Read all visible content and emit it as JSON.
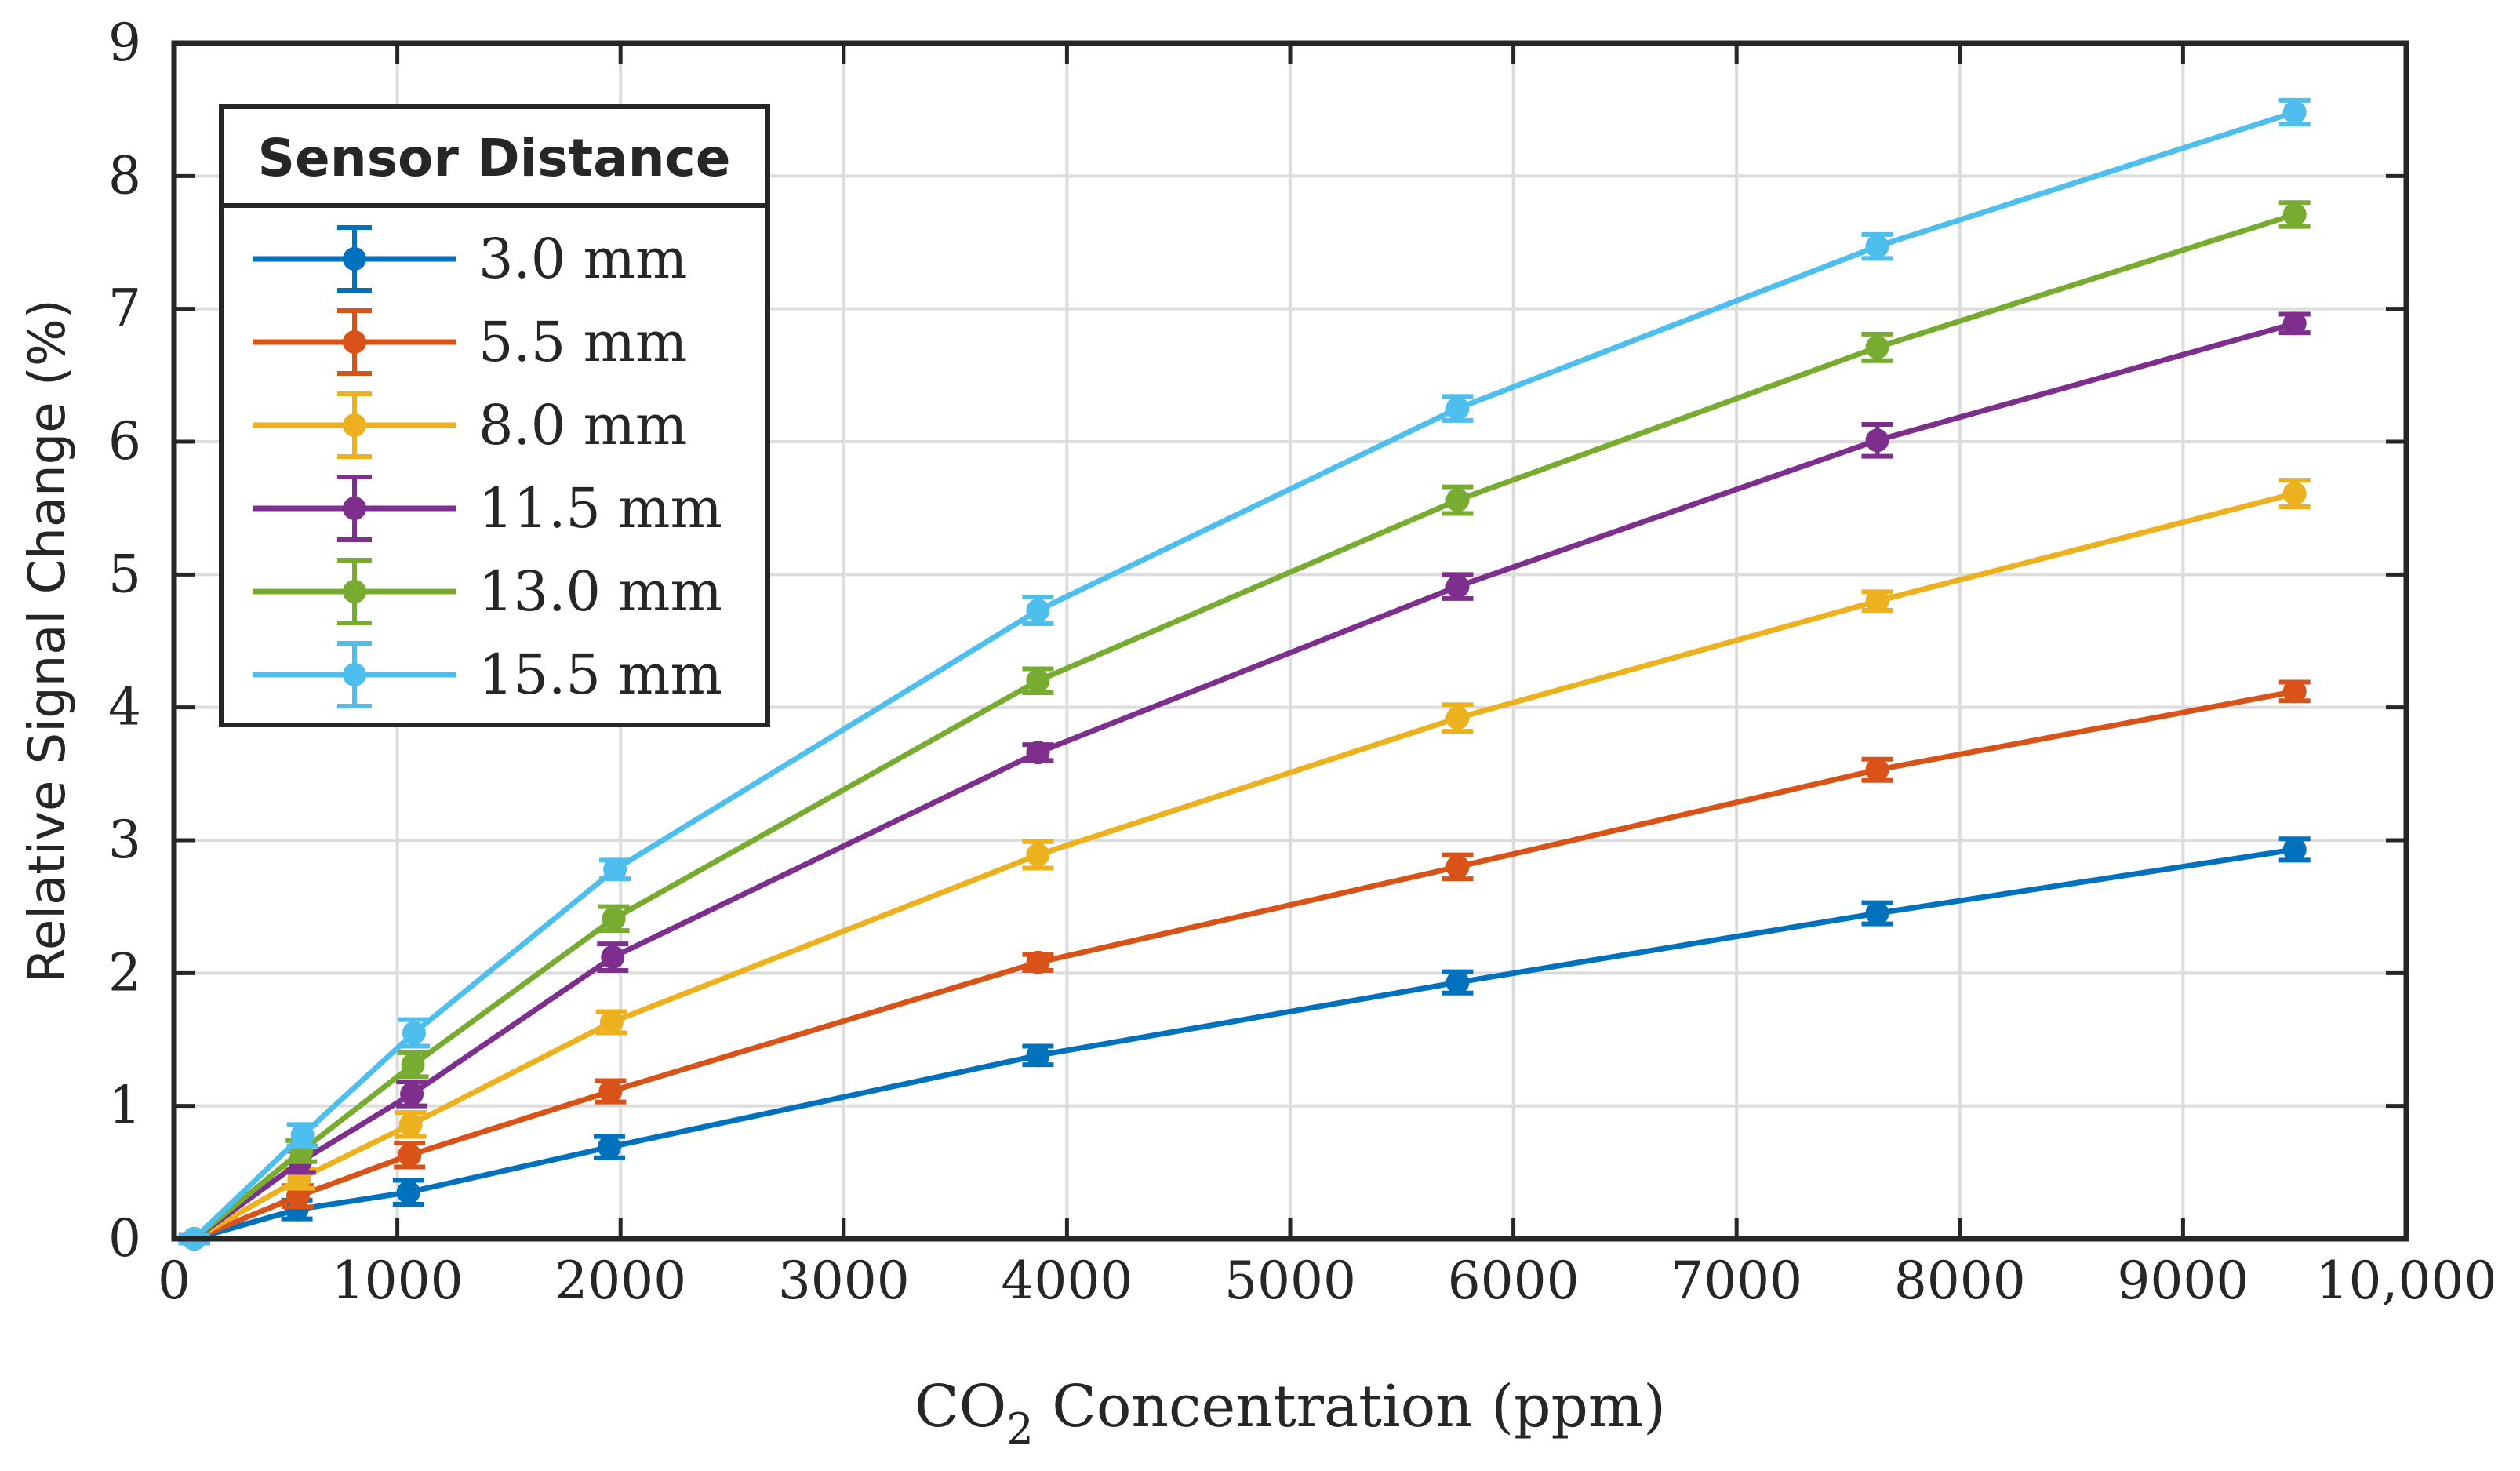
{
  "chart_data": {
    "type": "line",
    "xlabel_prefix": "CO",
    "xlabel_subscript": "2",
    "xlabel_suffix": " Concentration (ppm)",
    "ylabel": "Relative Signal Change (%)",
    "xlim": [
      0,
      10000
    ],
    "ylim": [
      0,
      9
    ],
    "xticks": [
      {
        "value": 0,
        "label": "0"
      },
      {
        "value": 1000,
        "label": "1000"
      },
      {
        "value": 2000,
        "label": "2000"
      },
      {
        "value": 3000,
        "label": "3000"
      },
      {
        "value": 4000,
        "label": "4000"
      },
      {
        "value": 5000,
        "label": "5000"
      },
      {
        "value": 6000,
        "label": "6000"
      },
      {
        "value": 7000,
        "label": "7000"
      },
      {
        "value": 8000,
        "label": "8000"
      },
      {
        "value": 9000,
        "label": "9000"
      },
      {
        "value": 10000,
        "label": "10,000"
      }
    ],
    "yticks": [
      {
        "value": 0,
        "label": "0"
      },
      {
        "value": 1,
        "label": "1"
      },
      {
        "value": 2,
        "label": "2"
      },
      {
        "value": 3,
        "label": "3"
      },
      {
        "value": 4,
        "label": "4"
      },
      {
        "value": 5,
        "label": "5"
      },
      {
        "value": 6,
        "label": "6"
      },
      {
        "value": 7,
        "label": "7"
      },
      {
        "value": 8,
        "label": "8"
      },
      {
        "value": 9,
        "label": "9"
      }
    ],
    "grid": true,
    "legend": {
      "title": "Sensor Distance",
      "position": "top-left"
    },
    "series": [
      {
        "name": "3.0 mm",
        "color": "#0072BD",
        "x": [
          90,
          550,
          1050,
          1950,
          3870,
          5750,
          7630,
          9500
        ],
        "y": [
          0,
          0.22,
          0.35,
          0.69,
          1.38,
          1.93,
          2.45,
          2.93
        ],
        "err": [
          0.03,
          0.07,
          0.09,
          0.08,
          0.07,
          0.08,
          0.08,
          0.08
        ]
      },
      {
        "name": "5.5 mm",
        "color": "#D95319",
        "x": [
          90,
          555,
          1055,
          1955,
          3870,
          5750,
          7630,
          9500
        ],
        "y": [
          0,
          0.32,
          0.63,
          1.11,
          2.08,
          2.8,
          3.53,
          4.12
        ],
        "err": [
          0.03,
          0.08,
          0.09,
          0.08,
          0.06,
          0.09,
          0.08,
          0.07
        ]
      },
      {
        "name": "8.0 mm",
        "color": "#EDB120",
        "x": [
          90,
          560,
          1060,
          1960,
          3870,
          5750,
          7630,
          9500
        ],
        "y": [
          0,
          0.45,
          0.86,
          1.63,
          2.89,
          3.92,
          4.8,
          5.61
        ],
        "err": [
          0.03,
          0.07,
          0.09,
          0.08,
          0.1,
          0.1,
          0.07,
          0.1
        ]
      },
      {
        "name": "11.5 mm",
        "color": "#7E2F8E",
        "x": [
          90,
          565,
          1065,
          1965,
          3870,
          5750,
          7630,
          9500
        ],
        "y": [
          0,
          0.58,
          1.09,
          2.12,
          3.66,
          4.91,
          6.01,
          6.89
        ],
        "err": [
          0.03,
          0.08,
          0.09,
          0.1,
          0.06,
          0.09,
          0.12,
          0.07
        ]
      },
      {
        "name": "13.0 mm",
        "color": "#77AC30",
        "x": [
          90,
          570,
          1070,
          1970,
          3870,
          5750,
          7630,
          9500
        ],
        "y": [
          0,
          0.66,
          1.31,
          2.41,
          4.2,
          5.56,
          6.71,
          7.71
        ],
        "err": [
          0.03,
          0.08,
          0.09,
          0.09,
          0.09,
          0.1,
          0.1,
          0.09
        ]
      },
      {
        "name": "15.5 mm",
        "color": "#4DBEEE",
        "x": [
          90,
          575,
          1075,
          1975,
          3870,
          5750,
          7630,
          9500
        ],
        "y": [
          0,
          0.78,
          1.55,
          2.78,
          4.73,
          6.25,
          7.47,
          8.48
        ],
        "err": [
          0.03,
          0.08,
          0.1,
          0.07,
          0.1,
          0.09,
          0.09,
          0.09
        ]
      }
    ]
  }
}
